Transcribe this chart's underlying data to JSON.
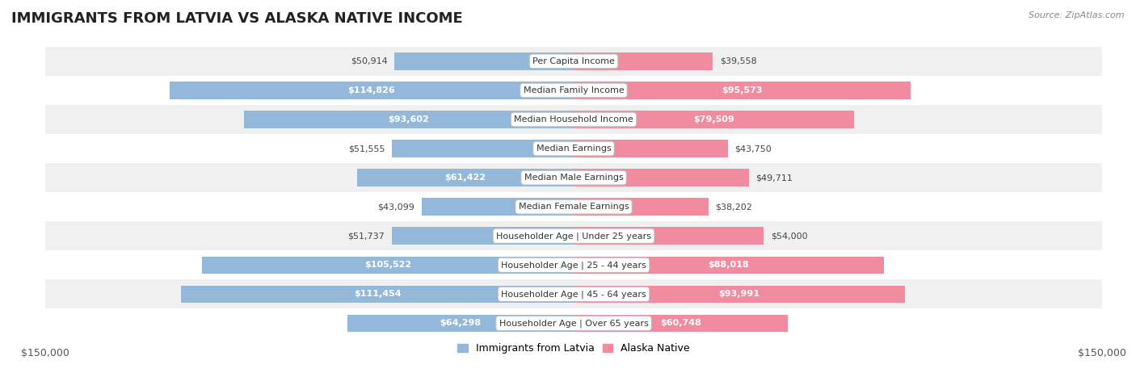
{
  "title": "IMMIGRANTS FROM LATVIA VS ALASKA NATIVE INCOME",
  "source": "Source: ZipAtlas.com",
  "categories": [
    "Per Capita Income",
    "Median Family Income",
    "Median Household Income",
    "Median Earnings",
    "Median Male Earnings",
    "Median Female Earnings",
    "Householder Age | Under 25 years",
    "Householder Age | 25 - 44 years",
    "Householder Age | 45 - 64 years",
    "Householder Age | Over 65 years"
  ],
  "latvia_values": [
    50914,
    114826,
    93602,
    51555,
    61422,
    43099,
    51737,
    105522,
    111454,
    64298
  ],
  "alaska_values": [
    39558,
    95573,
    79509,
    43750,
    49711,
    38202,
    54000,
    88018,
    93991,
    60748
  ],
  "latvia_color": "#93b8d9",
  "alaska_color": "#f08ba0",
  "max_value": 150000,
  "row_bg_colors": [
    "#f0f0f0",
    "#ffffff",
    "#f0f0f0",
    "#ffffff",
    "#f0f0f0",
    "#ffffff",
    "#f0f0f0",
    "#ffffff",
    "#f0f0f0",
    "#ffffff"
  ],
  "bar_height": 0.6,
  "legend_latvia": "Immigrants from Latvia",
  "legend_alaska": "Alaska Native",
  "label_threshold": 60000,
  "background_color": "#ffffff",
  "title_fontsize": 13,
  "label_fontsize": 8,
  "category_fontsize": 8
}
